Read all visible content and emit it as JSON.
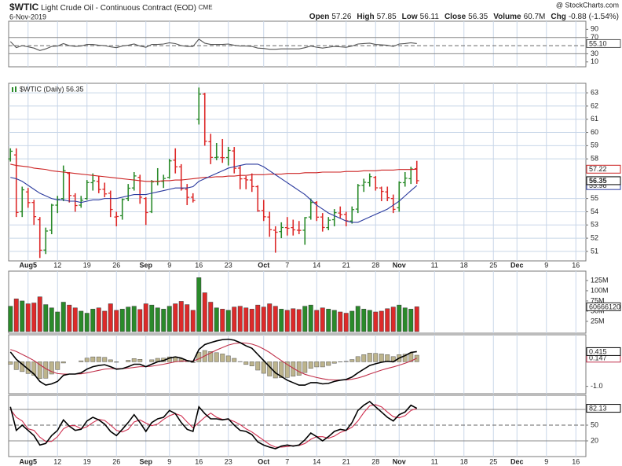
{
  "header": {
    "symbol": "$WTIC",
    "name": "Light Crude Oil - Continuous Contract (EOD)",
    "exchange": "CME",
    "date": "6-Nov-2019",
    "credit": "@ StockCharts.com",
    "stats": [
      {
        "label": "Open",
        "value": 57.26
      },
      {
        "label": "High",
        "value": 57.85
      },
      {
        "label": "Low",
        "value": 56.11
      },
      {
        "label": "Close",
        "value": 56.35
      },
      {
        "label": "Volume",
        "value": {
          "value": 60.7,
          "label": "60.7M"
        }
      },
      {
        "label": "Chg",
        "value": -0.88,
        "extra": {
          "value": -1.54,
          "label": "(-1.54%)"
        }
      }
    ]
  },
  "up_color": "#2a8a2a",
  "down_color": "#dd2a2a",
  "x_axis": {
    "xlim": [
      -0.3,
      97.7
    ],
    "xticks": [
      {
        "value": 3,
        "label": "Aug5"
      },
      {
        "value": 8,
        "label": "12"
      },
      {
        "value": 13,
        "label": "19"
      },
      {
        "value": 18,
        "label": "26"
      },
      {
        "value": 23,
        "label": "Sep"
      },
      {
        "value": 27,
        "label": "9"
      },
      {
        "value": 32,
        "label": "16"
      },
      {
        "value": 37,
        "label": "23"
      },
      {
        "value": 43,
        "label": "Oct"
      },
      {
        "value": 47,
        "label": "7"
      },
      {
        "value": 52,
        "label": "14"
      },
      {
        "value": 57,
        "label": "21"
      },
      {
        "value": 62,
        "label": "28"
      },
      {
        "value": 66,
        "label": "Nov"
      },
      {
        "value": 72,
        "label": "11"
      },
      {
        "value": 77,
        "label": "18"
      },
      {
        "value": 82,
        "label": "25"
      },
      {
        "value": 86,
        "label": "Dec"
      },
      {
        "value": 91,
        "label": "9"
      },
      {
        "value": 96,
        "label": "16"
      }
    ]
  },
  "chart_data": [
    {
      "type": "line",
      "ylim": [
        -2,
        110
      ],
      "yticks": [
        10,
        30,
        70,
        90
      ],
      "ref_lines": [
        70,
        30
      ],
      "mid_line": 50,
      "series": [
        {
          "color": "#555555",
          "value_box": true,
          "last_label": "55.10",
          "values": [
            60,
            45,
            50,
            47,
            44,
            38,
            42,
            48,
            49,
            55,
            50,
            48,
            49,
            53,
            53,
            51,
            50,
            47,
            45,
            49,
            51,
            54,
            49,
            46,
            53,
            53,
            54,
            57,
            55,
            50,
            48,
            48,
            66,
            56,
            53,
            53,
            53,
            54,
            51,
            49,
            49,
            48,
            44,
            43,
            41,
            41,
            42,
            42,
            42,
            42,
            45,
            49,
            46,
            44,
            46,
            48,
            47,
            46,
            49,
            54,
            55,
            56,
            53,
            52,
            51,
            48,
            54,
            55,
            57,
            55.1
          ]
        }
      ]
    },
    {
      "type": "ohlc",
      "legend": "$WTIC (Daily) 56.35",
      "ylim": [
        50.28,
        63.72
      ],
      "yticks": [
        51,
        52,
        53,
        54,
        55,
        58,
        59,
        60,
        61,
        62,
        63
      ],
      "grid": true,
      "close_box": true,
      "open": [
        58.0,
        58.3,
        54.0,
        55.5,
        54.7,
        53.4,
        51.1,
        52.6,
        54.5,
        55.0,
        56.9,
        55.2,
        54.5,
        55.0,
        56.2,
        56.3,
        55.7,
        55.4,
        53.6,
        53.7,
        55.0,
        55.8,
        56.6,
        55.0,
        54.0,
        56.3,
        56.3,
        56.6,
        57.9,
        57.4,
        55.7,
        55.1,
        61.0,
        62.9,
        59.3,
        58.1,
        58.1,
        58.1,
        58.6,
        57.3,
        56.5,
        56.4,
        55.9,
        54.1,
        53.6,
        52.6,
        52.5,
        52.8,
        52.8,
        52.6,
        52.6,
        53.6,
        54.7,
        53.6,
        52.8,
        53.4,
        53.9,
        53.8,
        53.3,
        54.2,
        56.0,
        56.2,
        56.6,
        55.8,
        55.5,
        55.0,
        54.3,
        56.2,
        56.5,
        57.26
      ],
      "high": [
        58.8,
        58.8,
        55.9,
        55.8,
        54.9,
        53.6,
        52.8,
        54.6,
        55.2,
        57.5,
        57.0,
        55.4,
        55.2,
        56.4,
        56.9,
        56.7,
        56.2,
        55.6,
        54.0,
        55.0,
        56.1,
        57.0,
        56.8,
        55.1,
        56.4,
        57.3,
        56.8,
        58.0,
        58.8,
        57.6,
        56.1,
        55.4,
        63.4,
        63.0,
        59.9,
        59.2,
        59.5,
        58.9,
        58.9,
        57.5,
        56.7,
        56.9,
        56.0,
        54.9,
        54.0,
        52.9,
        53.2,
        53.6,
        53.4,
        53.3,
        53.6,
        55.0,
        54.8,
        53.9,
        53.6,
        54.2,
        54.4,
        54.0,
        54.4,
        56.1,
        56.5,
        56.9,
        56.7,
        55.9,
        55.9,
        55.3,
        56.3,
        57.0,
        57.4,
        57.85
      ],
      "low": [
        57.8,
        53.6,
        53.6,
        54.3,
        53.0,
        50.5,
        50.8,
        52.3,
        53.9,
        54.8,
        54.7,
        54.0,
        54.3,
        54.9,
        55.6,
        55.4,
        55.1,
        53.6,
        52.9,
        53.4,
        54.8,
        55.6,
        54.6,
        53.0,
        53.9,
        56.0,
        55.8,
        56.5,
        56.9,
        55.6,
        54.5,
        54.7,
        60.6,
        59.0,
        57.6,
        57.9,
        57.7,
        57.5,
        56.9,
        55.7,
        55.7,
        55.5,
        54.0,
        53.3,
        52.1,
        50.9,
        52.0,
        52.2,
        52.2,
        52.3,
        51.5,
        53.4,
        53.3,
        52.5,
        52.6,
        52.9,
        53.5,
        52.9,
        53.1,
        53.9,
        55.5,
        55.9,
        55.6,
        54.8,
        54.8,
        53.9,
        54.0,
        55.9,
        56.1,
        56.11
      ],
      "close": [
        58.58,
        53.95,
        55.66,
        54.69,
        53.63,
        51.09,
        52.54,
        54.5,
        54.93,
        57.1,
        55.23,
        54.47,
        54.87,
        56.21,
        56.34,
        55.68,
        55.35,
        54.17,
        53.64,
        54.93,
        55.78,
        56.71,
        55.1,
        53.94,
        56.26,
        56.3,
        56.52,
        57.85,
        57.4,
        55.75,
        55.09,
        54.85,
        62.9,
        59.34,
        58.11,
        58.13,
        58.09,
        58.64,
        57.29,
        56.49,
        56.41,
        55.91,
        54.07,
        53.62,
        52.64,
        52.45,
        52.81,
        52.75,
        52.63,
        52.59,
        53.55,
        54.7,
        53.59,
        52.81,
        53.36,
        53.93,
        53.78,
        53.31,
        54.16,
        55.97,
        56.23,
        56.66,
        55.81,
        55.54,
        55.06,
        54.18,
        56.2,
        56.54,
        57.23,
        56.35
      ],
      "series": [
        {
          "color": "#cc2222",
          "value_box": true,
          "values": [
            57.6,
            57.5,
            57.45,
            57.4,
            57.3,
            57.25,
            57.2,
            57.1,
            57.05,
            57.0,
            56.95,
            56.9,
            56.85,
            56.8,
            56.75,
            56.7,
            56.65,
            56.6,
            56.55,
            56.5,
            56.45,
            56.4,
            56.35,
            56.3,
            56.3,
            56.3,
            56.35,
            56.35,
            56.4,
            56.4,
            56.45,
            56.5,
            56.55,
            56.6,
            56.6,
            56.65,
            56.65,
            56.7,
            56.7,
            56.75,
            56.75,
            56.8,
            56.8,
            56.8,
            56.85,
            56.85,
            56.85,
            56.9,
            56.9,
            56.9,
            56.95,
            56.95,
            56.95,
            57.0,
            57.0,
            57.0,
            57.0,
            57.05,
            57.05,
            57.05,
            57.1,
            57.1,
            57.1,
            57.15,
            57.15,
            57.15,
            57.2,
            57.2,
            57.2,
            57.22
          ]
        },
        {
          "color": "#2a3a9e",
          "value_box": true,
          "values": [
            56.6,
            56.5,
            56.3,
            56.0,
            55.7,
            55.4,
            55.2,
            55.0,
            54.9,
            54.9,
            54.8,
            54.8,
            54.7,
            54.8,
            54.9,
            54.9,
            55.0,
            55.0,
            55.0,
            55.1,
            55.2,
            55.3,
            55.3,
            55.3,
            55.4,
            55.5,
            55.6,
            55.7,
            55.8,
            55.8,
            55.8,
            55.9,
            56.3,
            56.5,
            56.7,
            56.9,
            57.1,
            57.3,
            57.4,
            57.5,
            57.6,
            57.6,
            57.6,
            57.4,
            57.1,
            56.8,
            56.5,
            56.2,
            55.9,
            55.6,
            55.3,
            54.9,
            54.5,
            54.2,
            53.9,
            53.7,
            53.5,
            53.3,
            53.2,
            53.2,
            53.4,
            53.6,
            53.8,
            54.0,
            54.2,
            54.5,
            54.8,
            55.2,
            55.6,
            55.98
          ]
        }
      ]
    },
    {
      "type": "bar",
      "ylim": [
        -4,
        148
      ],
      "colored_by_price": true,
      "yticks": [
        {
          "value": 25,
          "label": "25M"
        },
        {
          "value": 50,
          "label": "50M"
        },
        {
          "value": 75,
          "label": "75M"
        },
        {
          "value": 100,
          "label": "100M"
        },
        {
          "value": 125,
          "label": "125M"
        }
      ],
      "series": [
        {
          "value_box": true,
          "last_label": "60666120",
          "values": [
            62,
            80,
            75,
            68,
            70,
            85,
            66,
            58,
            48,
            72,
            65,
            58,
            50,
            45,
            55,
            58,
            50,
            68,
            52,
            55,
            60,
            62,
            54,
            68,
            65,
            58,
            55,
            62,
            68,
            74,
            66,
            52,
            132,
            95,
            72,
            58,
            55,
            52,
            60,
            62,
            58,
            55,
            65,
            60,
            68,
            62,
            55,
            52,
            56,
            54,
            62,
            65,
            52,
            58,
            55,
            52,
            48,
            45,
            50,
            62,
            55,
            52,
            48,
            50,
            56,
            60,
            65,
            58,
            55,
            60.66612
          ]
        }
      ]
    },
    {
      "type": "combo",
      "ylim": [
        -1.3,
        1.1
      ],
      "yticks": [
        {
          "value": -1,
          "label": "-1.0"
        }
      ],
      "series": [
        {
          "style": "bar",
          "color": "#bdb48c",
          "values": [
            -0.1,
            -0.32,
            -0.4,
            -0.48,
            -0.55,
            -0.68,
            -0.67,
            -0.5,
            -0.32,
            -0.05,
            0,
            0,
            0.04,
            0.15,
            0.2,
            0.2,
            0.18,
            0.08,
            -0.02,
            0,
            0.06,
            0.13,
            0.1,
            0,
            0.08,
            0.14,
            0.15,
            0.2,
            0.2,
            0.12,
            0.02,
            -0.03,
            0.38,
            0.46,
            0.42,
            0.37,
            0.32,
            0.24,
            0.14,
            0.01,
            -0.11,
            -0.17,
            -0.34,
            -0.47,
            -0.58,
            -0.66,
            -0.65,
            -0.64,
            -0.59,
            -0.55,
            -0.44,
            -0.27,
            -0.21,
            -0.21,
            -0.15,
            -0.06,
            -0.01,
            0.02,
            0.09,
            0.21,
            0.29,
            0.35,
            0.34,
            0.32,
            0.29,
            0.21,
            0.29,
            0.31,
            0.35,
            0.268
          ]
        },
        {
          "color": "#c0304a",
          "value_box": true,
          "values": [
            0.5,
            0.42,
            0.3,
            0.18,
            0.05,
            -0.12,
            -0.28,
            -0.4,
            -0.48,
            -0.5,
            -0.5,
            -0.5,
            -0.49,
            -0.45,
            -0.4,
            -0.35,
            -0.3,
            -0.28,
            -0.28,
            -0.28,
            -0.26,
            -0.23,
            -0.2,
            -0.2,
            -0.18,
            -0.14,
            -0.1,
            -0.05,
            0,
            0.03,
            0.03,
            0.03,
            0.12,
            0.24,
            0.36,
            0.48,
            0.58,
            0.68,
            0.74,
            0.77,
            0.76,
            0.72,
            0.64,
            0.52,
            0.38,
            0.21,
            0.05,
            -0.11,
            -0.26,
            -0.4,
            -0.51,
            -0.58,
            -0.64,
            -0.69,
            -0.73,
            -0.74,
            -0.74,
            -0.74,
            -0.71,
            -0.66,
            -0.59,
            -0.5,
            -0.42,
            -0.34,
            -0.27,
            -0.21,
            -0.14,
            -0.06,
            0.03,
            0.147
          ]
        },
        {
          "color": "#000000",
          "width": 1.6,
          "value_box": true,
          "values": [
            0.4,
            0.1,
            -0.1,
            -0.3,
            -0.5,
            -0.8,
            -0.95,
            -0.9,
            -0.8,
            -0.55,
            -0.5,
            -0.5,
            -0.45,
            -0.3,
            -0.2,
            -0.15,
            -0.12,
            -0.2,
            -0.3,
            -0.28,
            -0.2,
            -0.1,
            -0.1,
            -0.2,
            -0.1,
            0,
            0.05,
            0.15,
            0.2,
            0.15,
            0.05,
            0,
            0.5,
            0.7,
            0.78,
            0.85,
            0.9,
            0.92,
            0.88,
            0.78,
            0.65,
            0.55,
            0.3,
            0.05,
            -0.2,
            -0.45,
            -0.6,
            -0.75,
            -0.85,
            -0.95,
            -0.95,
            -0.85,
            -0.85,
            -0.9,
            -0.88,
            -0.8,
            -0.75,
            -0.72,
            -0.62,
            -0.45,
            -0.3,
            -0.15,
            -0.08,
            -0.02,
            0.02,
            0,
            0.15,
            0.25,
            0.38,
            0.415
          ]
        }
      ]
    },
    {
      "type": "line",
      "ylim": [
        -10,
        107
      ],
      "yticks": [
        20,
        50
      ],
      "ref_lines": [
        80,
        20
      ],
      "mid_line": 50,
      "series": [
        {
          "color": "#d03050",
          "values": [
            80,
            65,
            58,
            43,
            40,
            27,
            19,
            19,
            28,
            43,
            49,
            49,
            43,
            47,
            55,
            61,
            59,
            50,
            40,
            37,
            42,
            56,
            60,
            54,
            49,
            52,
            61,
            68,
            72,
            68,
            56,
            45,
            55,
            65,
            73,
            65,
            61,
            61,
            57,
            51,
            43,
            37,
            29,
            21,
            13,
            8,
            8,
            9,
            11,
            11,
            15,
            23,
            28,
            28,
            25,
            29,
            36,
            40,
            46,
            58,
            74,
            87,
            89,
            85,
            75,
            66,
            64,
            68,
            78,
            82
          ]
        },
        {
          "color": "#000000",
          "width": 1.6,
          "value_box": true,
          "values": [
            85,
            40,
            50,
            40,
            30,
            12,
            15,
            30,
            40,
            60,
            48,
            40,
            42,
            58,
            65,
            60,
            52,
            38,
            30,
            42,
            55,
            70,
            55,
            38,
            55,
            62,
            65,
            78,
            72,
            55,
            42,
            38,
            85,
            72,
            62,
            62,
            60,
            62,
            50,
            40,
            38,
            32,
            18,
            12,
            8,
            5,
            10,
            12,
            10,
            12,
            22,
            35,
            28,
            20,
            28,
            38,
            42,
            40,
            55,
            78,
            88,
            95,
            85,
            75,
            65,
            58,
            70,
            75,
            88,
            82.13
          ]
        }
      ]
    }
  ]
}
